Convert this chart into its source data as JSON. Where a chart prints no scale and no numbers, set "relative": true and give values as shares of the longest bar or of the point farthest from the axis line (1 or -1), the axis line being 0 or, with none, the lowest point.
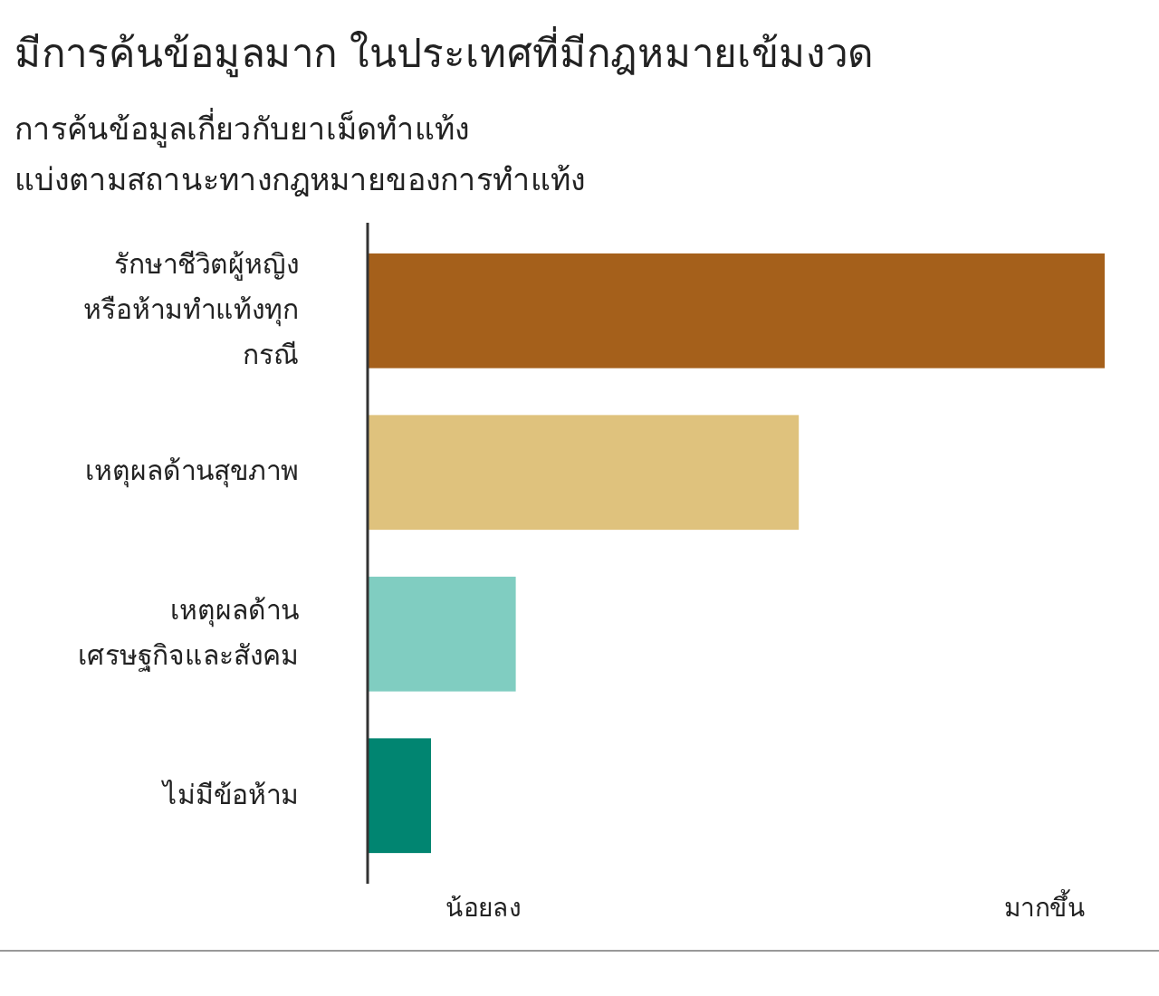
{
  "chart_data": {
    "type": "bar",
    "orientation": "horizontal",
    "relative": true,
    "title": "มีการค้นข้อมูลมาก ในประเทศที่มีกฎหมายเข้มงวด",
    "subtitle": "การค้นข้อมูลเกี่ยวกับยาเม็ดทำแท้ง\nแบ่งตามสถานะทางกฎหมายของการทำแท้ง",
    "categories": [
      "รักษาชีวิตผู้หญิง\nหรือห้ามทำแท้งทุก\nกรณี",
      "เหตุผลด้านสุขภาพ",
      "เหตุผลด้าน\nเศรษฐกิจและสังคม",
      "ไม่มีข้อห้าม"
    ],
    "values": [
      1,
      0.585,
      0.201,
      0.086
    ],
    "colors": [
      "#a5601b",
      "#dfc27d",
      "#80cdc1",
      "#018571"
    ],
    "annotations": [
      "น้อยลง",
      "มากขึ้น"
    ]
  }
}
